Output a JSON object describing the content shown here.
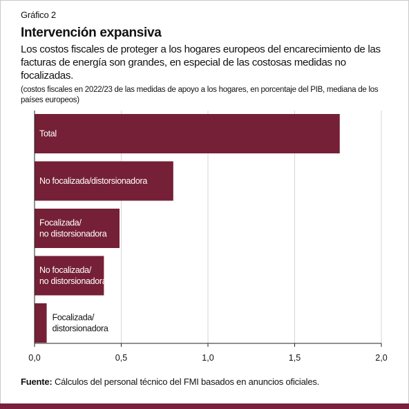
{
  "header": {
    "label": "Gráfico 2",
    "title": "Intervención expansiva",
    "subtitle": "Los costos fiscales de proteger a los hogares europeos del encarecimiento de las facturas de energía son grandes, en especial de las costosas medidas no focalizadas.",
    "units": "(costos fiscales en 2022/23 de las medidas de apoyo a los hogares, en porcentaje del PIB, mediana de los países europeos)"
  },
  "chart_data": {
    "type": "bar",
    "orientation": "horizontal",
    "categories": [
      [
        "Total"
      ],
      [
        "No focalizada/distorsionadora"
      ],
      [
        "Focalizada/",
        "no distorsionadora"
      ],
      [
        "No focalizada/",
        "no distorsionadora"
      ],
      [
        "Focalizada/",
        "distorsionadora"
      ]
    ],
    "values": [
      1.76,
      0.8,
      0.49,
      0.4,
      0.07
    ],
    "xlim": [
      0,
      2.0
    ],
    "xticks": [
      "0,0",
      "0,5",
      "1,0",
      "1,5",
      "2,0"
    ],
    "xtick_values": [
      0,
      0.5,
      1.0,
      1.5,
      2.0
    ],
    "bar_color": "#752037",
    "grid": true
  },
  "source": {
    "label": "Fuente:",
    "text": " Cálculos del personal técnico del FMI basados en anuncios oficiales."
  },
  "colors": {
    "accent": "#7a1f3d"
  }
}
